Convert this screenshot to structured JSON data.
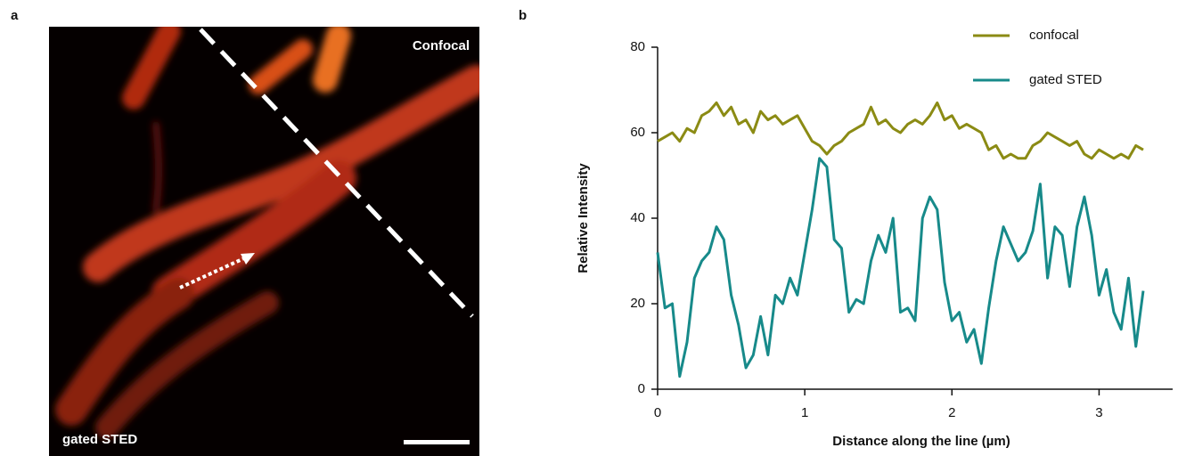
{
  "panel_labels": [
    "a",
    "b"
  ],
  "image": {
    "labels": [
      "Confocal",
      "gated STED"
    ]
  },
  "chart_data": {
    "type": "line",
    "xlabel": "Distance along the line (µm)",
    "ylabel": "Relative Intensity",
    "x": [
      0,
      0.05,
      0.1,
      0.15,
      0.2,
      0.25,
      0.3,
      0.35,
      0.4,
      0.45,
      0.5,
      0.55,
      0.6,
      0.65,
      0.7,
      0.75,
      0.8,
      0.85,
      0.9,
      0.95,
      1,
      1.05,
      1.1,
      1.15,
      1.2,
      1.25,
      1.3,
      1.35,
      1.4,
      1.45,
      1.5,
      1.55,
      1.6,
      1.65,
      1.7,
      1.75,
      1.8,
      1.85,
      1.9,
      1.95,
      2,
      2.05,
      2.1,
      2.15,
      2.2,
      2.25,
      2.3,
      2.35,
      2.4,
      2.45,
      2.5,
      2.55,
      2.6,
      2.65,
      2.7,
      2.75,
      2.8,
      2.85,
      2.9,
      2.95,
      3,
      3.05,
      3.1,
      3.15,
      3.2,
      3.25,
      3.3
    ],
    "series": [
      {
        "name": "confocal",
        "color": "#8b8b14",
        "values": [
          58,
          59,
          60,
          58,
          61,
          60,
          64,
          65,
          67,
          64,
          66,
          62,
          63,
          60,
          65,
          63,
          64,
          62,
          63,
          64,
          61,
          58,
          57,
          55,
          57,
          58,
          60,
          61,
          62,
          66,
          62,
          63,
          61,
          60,
          62,
          63,
          62,
          64,
          67,
          63,
          64,
          61,
          62,
          61,
          60,
          56,
          57,
          54,
          55,
          54,
          54,
          57,
          58,
          60,
          59,
          58,
          57,
          58,
          55,
          54,
          56,
          55,
          54,
          55,
          54,
          57,
          56
        ]
      },
      {
        "name": "gated STED",
        "color": "#178a8a",
        "values": [
          32,
          19,
          20,
          3,
          11,
          26,
          30,
          32,
          38,
          35,
          22,
          15,
          5,
          8,
          17,
          8,
          22,
          20,
          26,
          22,
          32,
          42,
          54,
          52,
          35,
          33,
          18,
          21,
          20,
          30,
          36,
          32,
          40,
          18,
          19,
          16,
          40,
          45,
          42,
          25,
          16,
          18,
          11,
          14,
          6,
          19,
          30,
          38,
          34,
          30,
          32,
          37,
          48,
          26,
          38,
          36,
          24,
          38,
          45,
          36,
          22,
          28,
          18,
          14,
          26,
          10,
          23
        ]
      }
    ],
    "xlim": [
      0,
      3.5
    ],
    "ylim": [
      0,
      80
    ],
    "xticks": [
      0,
      1,
      2,
      3
    ],
    "yticks": [
      0,
      20,
      40,
      60,
      80
    ],
    "legend": "upper right"
  }
}
